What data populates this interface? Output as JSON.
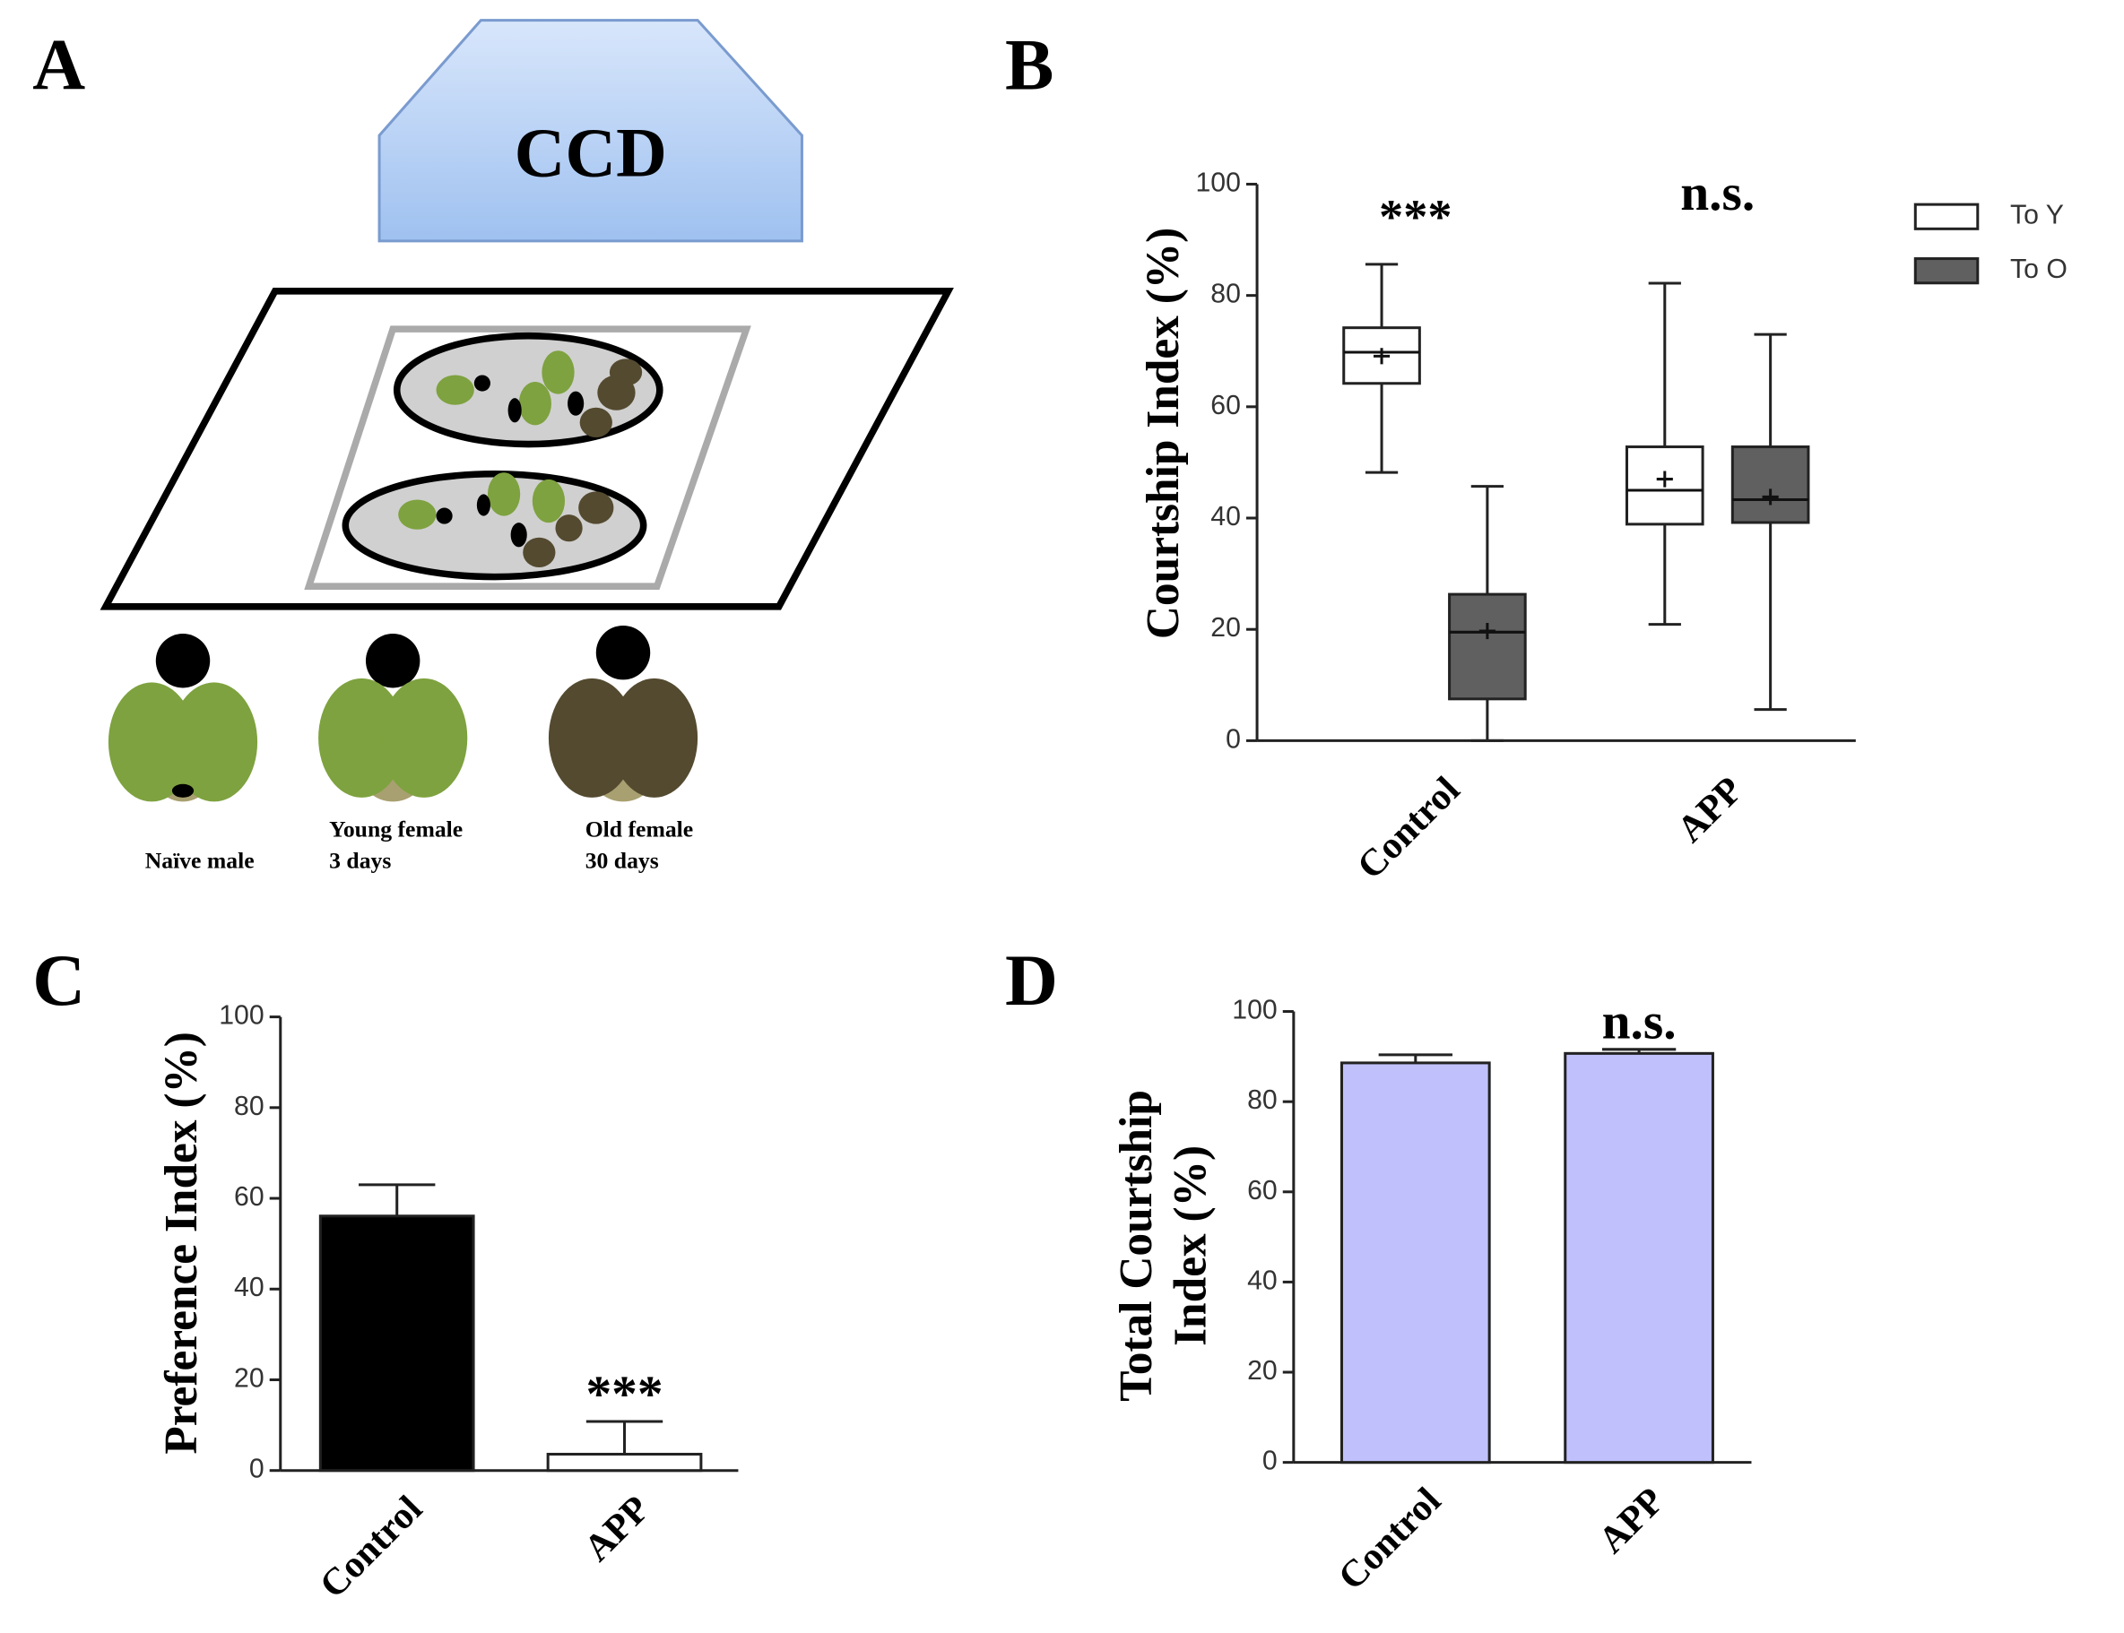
{
  "diagram": {
    "label": "A",
    "camera": "CCD",
    "flies": [
      {
        "line1": "Naïve male"
      },
      {
        "line1": "Young female",
        "line2": "3 days"
      },
      {
        "line1": "Old female",
        "line2": "30 days"
      }
    ]
  },
  "chart_data": [
    {
      "type": "box",
      "label": "B",
      "ylabel": [
        "Courtship Index (%)"
      ],
      "categories": [
        "Control",
        "APP"
      ],
      "series": [
        {
          "name": "To Y",
          "color": "#ffffff",
          "values": [
            {
              "min": 48.2,
              "q1": 64.2,
              "median": 69.8,
              "q3": 74.2,
              "max": 85.6,
              "mean": 69.1
            },
            {
              "min": 20.9,
              "q1": 38.9,
              "median": 45,
              "q3": 52.8,
              "max": 82.2,
              "mean": 47
            }
          ]
        },
        {
          "name": "To O",
          "color": "#606060",
          "values": [
            {
              "min": 0,
              "q1": 7.5,
              "median": 19.5,
              "q3": 26.3,
              "max": 45.7,
              "mean": 19.7
            },
            {
              "min": 5.6,
              "q1": 39.2,
              "median": 43.3,
              "q3": 52.8,
              "max": 73,
              "mean": 43.8
            }
          ]
        }
      ],
      "annotations": [
        "***",
        "n.s."
      ],
      "ylim": [
        0,
        100
      ],
      "yticks": [
        0,
        20,
        40,
        60,
        80,
        100
      ]
    },
    {
      "type": "bar",
      "label": "C",
      "ylabel": [
        "Preference Index (%)"
      ],
      "categories": [
        "Control",
        "APP"
      ],
      "values": [
        56.1,
        3.6
      ],
      "errors": [
        6.9,
        7.2
      ],
      "colors": [
        "#000000",
        "#ffffff"
      ],
      "annotations": [
        null,
        "***"
      ],
      "ylim": [
        0,
        100
      ],
      "yticks": [
        0,
        20,
        40,
        60,
        80,
        100
      ]
    },
    {
      "type": "bar",
      "label": "D",
      "ylabel": [
        "Total Courtship",
        "Index (%)"
      ],
      "categories": [
        "Control",
        "APP"
      ],
      "values": [
        88.6,
        90.7
      ],
      "errors": [
        1.8,
        0.9
      ],
      "colors": [
        "#c0c0fc",
        "#c0c0fc"
      ],
      "annotations": [
        null,
        "n.s."
      ],
      "ylim": [
        0,
        100
      ],
      "yticks": [
        0,
        20,
        40,
        60,
        80,
        100
      ]
    }
  ]
}
